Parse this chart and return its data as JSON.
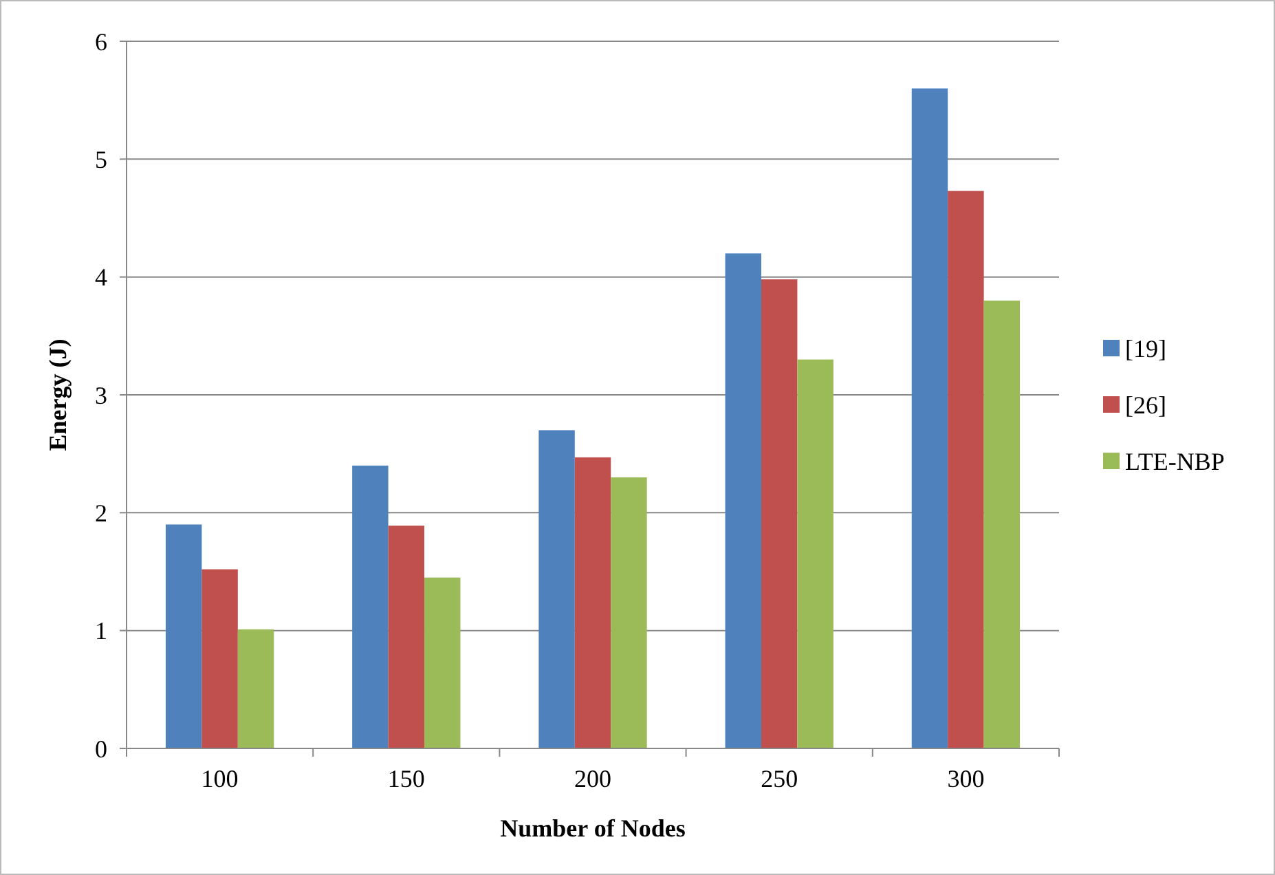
{
  "chart_data": {
    "type": "bar",
    "xlabel": "Number of Nodes",
    "ylabel": "Energy (J)",
    "categories": [
      "100",
      "150",
      "200",
      "250",
      "300"
    ],
    "series": [
      {
        "name": "[19]",
        "color": "#4f81bd",
        "values": [
          1.9,
          2.4,
          2.7,
          4.2,
          5.6
        ]
      },
      {
        "name": "[26]",
        "color": "#c0504d",
        "values": [
          1.52,
          1.89,
          2.47,
          3.98,
          4.73
        ]
      },
      {
        "name": "LTE-NBP",
        "color": "#9bbb59",
        "values": [
          1.01,
          1.45,
          2.3,
          3.3,
          3.8
        ]
      }
    ],
    "ylim": [
      0,
      6
    ],
    "yticks": [
      0,
      1,
      2,
      3,
      4,
      5,
      6
    ],
    "grid": "y",
    "legend": "right"
  }
}
